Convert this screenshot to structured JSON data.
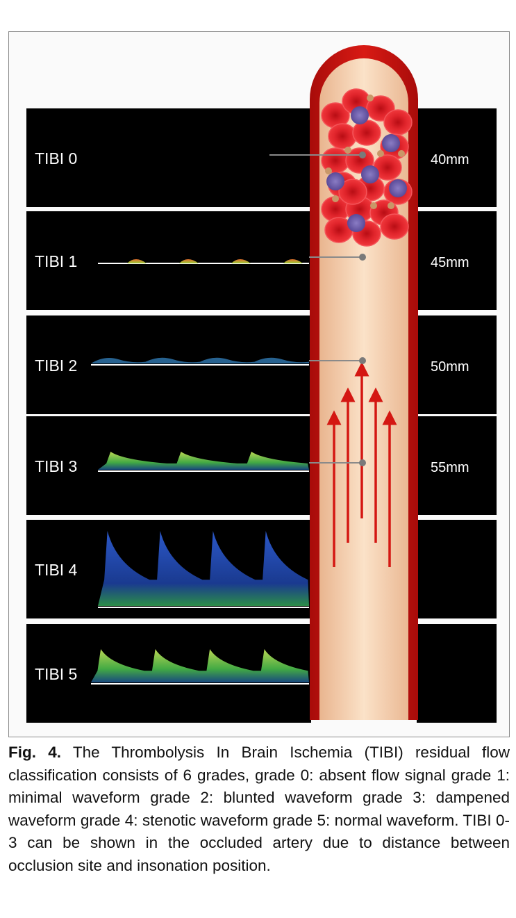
{
  "grades": [
    {
      "label": "TIBI 0",
      "distance": "40mm"
    },
    {
      "label": "TIBI 1",
      "distance": "45mm"
    },
    {
      "label": "TIBI 2",
      "distance": "50mm"
    },
    {
      "label": "TIBI 3",
      "distance": "55mm"
    },
    {
      "label": "TIBI 4",
      "distance": ""
    },
    {
      "label": "TIBI 5",
      "distance": ""
    }
  ],
  "caption": {
    "label": "Fig. 4.",
    "text": "The Thrombolysis In Brain Ischemia (TIBI) residual flow classification consists of 6 grades, grade 0: absent flow signal grade 1: minimal waveform grade 2: blunted waveform grade 3: dampened waveform grade 4: stenotic waveform grade 5: normal waveform. TIBI 0-3 can be shown in the occluded artery due to distance between occlusion site and insonation position."
  },
  "colors": {
    "panel_bg": "#000000",
    "artery_wall": "#c8140f",
    "artery_lumen": "#f7d3b4",
    "flow_arrow": "#d41712",
    "rbc": "#e3242b",
    "wbc": "#6a5aa8",
    "platelet": "#c99768"
  }
}
